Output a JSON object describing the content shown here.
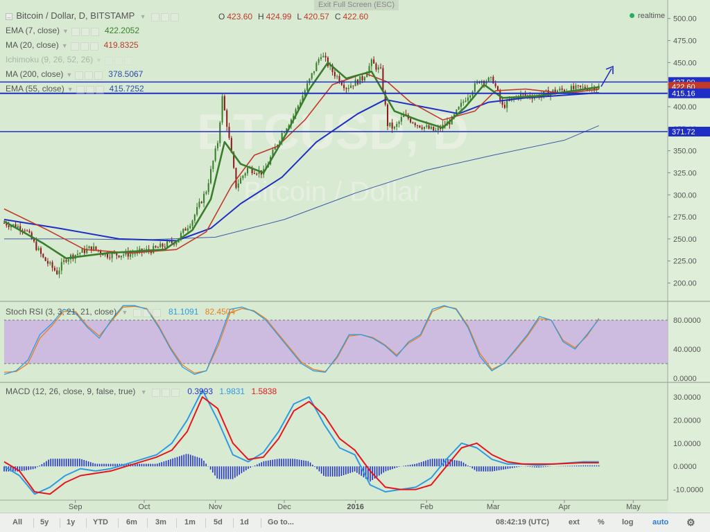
{
  "symbol_title": "Bitcoin / Dollar, D, BITSTAMP",
  "exit_fullscreen": "Exit Full Screen (ESC)",
  "realtime": "realtime",
  "ohlc": [
    {
      "k": "O",
      "v": "423.60"
    },
    {
      "k": "H",
      "v": "424.99"
    },
    {
      "k": "L",
      "v": "420.57"
    },
    {
      "k": "C",
      "v": "422.60"
    }
  ],
  "legend": [
    {
      "name": "EMA (7, close)",
      "value": "422.2052",
      "color": "#3a7d2c",
      "faded": false
    },
    {
      "name": "MA (20, close)",
      "value": "419.8325",
      "color": "#c0392b",
      "faded": false
    },
    {
      "name": "Ichimoku (9, 26, 52, 26)",
      "value": "",
      "color": "#888888",
      "faded": true
    },
    {
      "name": "MA (200, close)",
      "value": "378.5067",
      "color": "#2a4aa8",
      "faded": false
    },
    {
      "name": "EMA (55, close)",
      "value": "415.7252",
      "color": "#2a4aa8",
      "faded": false
    }
  ],
  "stoch_legend": {
    "name": "Stoch RSI (3, 3, 21, 21, close)",
    "k": "81.1091",
    "d": "82.4504"
  },
  "macd_legend": {
    "name": "MACD (12, 26, close, 9, false, true)",
    "hist": "0.3993",
    "macd": "1.9831",
    "signal": "1.5838"
  },
  "colors": {
    "background": "#d9ead3",
    "up": "#3a7d2c",
    "down": "#8b1c1c",
    "ema7": "#3a7d2c",
    "ma20": "#c0392b",
    "ema55": "#1f2ec4",
    "ma200": "#3c5aa6",
    "hline": "#1f2ec4",
    "stoch_k": "#2e9be0",
    "stoch_d": "#e67e22",
    "stoch_band": "#cdbbe0",
    "macd_line": "#2e9be0",
    "signal_line": "#e8141b",
    "hist": "#2233cc"
  },
  "bottom_bar": {
    "ranges": [
      "All",
      "5y",
      "1y",
      "YTD",
      "6m",
      "3m",
      "1m",
      "5d",
      "1d"
    ],
    "goto": "Go to...",
    "time": "08:42:19 (UTC)",
    "ext": "ext",
    "pct": "%",
    "log": "log",
    "auto": "auto",
    "settings_icon": "gear-icon"
  },
  "chart_data": [
    {
      "type": "candlestick",
      "title": "Bitcoin / Dollar, D, BITSTAMP",
      "x_tick_labels": [
        "Sep",
        "Oct",
        "Nov",
        "Dec",
        "2016",
        "Feb",
        "Mar",
        "Apr",
        "May"
      ],
      "x_tick_dates": [
        "2015-09-01",
        "2015-10-01",
        "2015-11-01",
        "2015-12-01",
        "2016-01-01",
        "2016-02-01",
        "2016-03-01",
        "2016-04-01",
        "2016-05-01"
      ],
      "y_ticks": [
        200,
        225,
        250,
        275,
        300,
        325,
        350,
        375,
        400,
        425,
        450,
        475,
        500
      ],
      "y_tick_labels": [
        "200.00",
        "225.00",
        "250.00",
        "275.00",
        "300.00",
        "325.00",
        "350.00",
        "375.00",
        "400.00",
        "425.00",
        "450.00",
        "475.00",
        "500.00"
      ],
      "ylim": [
        180,
        510
      ],
      "horizontal_lines": [
        427.99,
        415.16,
        371.72
      ],
      "price_labels": [
        {
          "value": 427.99,
          "label": "427.99",
          "color": "#1f2ec4"
        },
        {
          "value": 422.6,
          "label": "422.60",
          "color": "#c0392b"
        },
        {
          "value": 415.16,
          "label": "415.16",
          "color": "#1f2ec4"
        },
        {
          "value": 371.72,
          "label": "371.72",
          "color": "#1f2ec4"
        }
      ],
      "price_path": [
        [
          "2015-08-01",
          268
        ],
        [
          "2015-08-10",
          262
        ],
        [
          "2015-08-18",
          228
        ],
        [
          "2015-08-24",
          212
        ],
        [
          "2015-08-28",
          228
        ],
        [
          "2015-09-08",
          240
        ],
        [
          "2015-09-15",
          232
        ],
        [
          "2015-09-25",
          233
        ],
        [
          "2015-10-05",
          238
        ],
        [
          "2015-10-15",
          248
        ],
        [
          "2015-10-22",
          272
        ],
        [
          "2015-10-28",
          305
        ],
        [
          "2015-11-02",
          360
        ],
        [
          "2015-11-04",
          410
        ],
        [
          "2015-11-06",
          380
        ],
        [
          "2015-11-10",
          310
        ],
        [
          "2015-11-15",
          330
        ],
        [
          "2015-11-22",
          325
        ],
        [
          "2015-11-30",
          370
        ],
        [
          "2015-12-05",
          390
        ],
        [
          "2015-12-12",
          430
        ],
        [
          "2015-12-17",
          460
        ],
        [
          "2015-12-22",
          440
        ],
        [
          "2015-12-28",
          422
        ],
        [
          "2016-01-04",
          432
        ],
        [
          "2016-01-08",
          450
        ],
        [
          "2016-01-12",
          440
        ],
        [
          "2016-01-15",
          380
        ],
        [
          "2016-01-18",
          375
        ],
        [
          "2016-01-22",
          390
        ],
        [
          "2016-01-28",
          380
        ],
        [
          "2016-02-05",
          372
        ],
        [
          "2016-02-12",
          385
        ],
        [
          "2016-02-18",
          410
        ],
        [
          "2016-02-24",
          430
        ],
        [
          "2016-03-01",
          430
        ],
        [
          "2016-03-05",
          400
        ],
        [
          "2016-03-12",
          413
        ],
        [
          "2016-03-20",
          412
        ],
        [
          "2016-03-28",
          418
        ],
        [
          "2016-04-05",
          420
        ],
        [
          "2016-04-12",
          422
        ],
        [
          "2016-04-16",
          422.6
        ]
      ],
      "ema7_path": [
        [
          "2015-08-01",
          270
        ],
        [
          "2015-08-18",
          245
        ],
        [
          "2015-08-28",
          228
        ],
        [
          "2015-09-15",
          234
        ],
        [
          "2015-10-10",
          238
        ],
        [
          "2015-10-22",
          260
        ],
        [
          "2015-10-30",
          295
        ],
        [
          "2015-11-05",
          360
        ],
        [
          "2015-11-12",
          335
        ],
        [
          "2015-11-22",
          325
        ],
        [
          "2015-12-02",
          370
        ],
        [
          "2015-12-12",
          420
        ],
        [
          "2015-12-20",
          450
        ],
        [
          "2015-12-28",
          432
        ],
        [
          "2016-01-08",
          440
        ],
        [
          "2016-01-18",
          395
        ],
        [
          "2016-01-28",
          385
        ],
        [
          "2016-02-08",
          376
        ],
        [
          "2016-02-18",
          400
        ],
        [
          "2016-02-26",
          425
        ],
        [
          "2016-03-05",
          410
        ],
        [
          "2016-03-20",
          412
        ],
        [
          "2016-04-05",
          418
        ],
        [
          "2016-04-16",
          422.2
        ]
      ],
      "ma20_path": [
        [
          "2015-08-01",
          284
        ],
        [
          "2015-08-20",
          260
        ],
        [
          "2015-09-05",
          238
        ],
        [
          "2015-09-25",
          234
        ],
        [
          "2015-10-15",
          238
        ],
        [
          "2015-10-28",
          258
        ],
        [
          "2015-11-08",
          310
        ],
        [
          "2015-11-18",
          345
        ],
        [
          "2015-11-28",
          355
        ],
        [
          "2015-12-10",
          385
        ],
        [
          "2015-12-22",
          425
        ],
        [
          "2016-01-05",
          438
        ],
        [
          "2016-01-15",
          428
        ],
        [
          "2016-01-25",
          405
        ],
        [
          "2016-02-08",
          385
        ],
        [
          "2016-02-22",
          395
        ],
        [
          "2016-03-02",
          418
        ],
        [
          "2016-03-15",
          420
        ],
        [
          "2016-04-01",
          415
        ],
        [
          "2016-04-16",
          419.8
        ]
      ],
      "ema55_path": [
        [
          "2015-08-01",
          272
        ],
        [
          "2015-08-25",
          262
        ],
        [
          "2015-09-20",
          250
        ],
        [
          "2015-10-15",
          248
        ],
        [
          "2015-10-30",
          262
        ],
        [
          "2015-11-12",
          290
        ],
        [
          "2015-11-30",
          320
        ],
        [
          "2015-12-15",
          360
        ],
        [
          "2016-01-02",
          392
        ],
        [
          "2016-01-14",
          408
        ],
        [
          "2016-01-30",
          400
        ],
        [
          "2016-02-15",
          392
        ],
        [
          "2016-02-28",
          405
        ],
        [
          "2016-03-15",
          410
        ],
        [
          "2016-04-16",
          415.7
        ]
      ],
      "ma200_path": [
        [
          "2015-08-01",
          250
        ],
        [
          "2015-09-01",
          250
        ],
        [
          "2015-10-01",
          249
        ],
        [
          "2015-11-01",
          252
        ],
        [
          "2015-12-01",
          272
        ],
        [
          "2016-01-01",
          302
        ],
        [
          "2016-02-01",
          328
        ],
        [
          "2016-03-01",
          345
        ],
        [
          "2016-04-01",
          362
        ],
        [
          "2016-04-16",
          378.5
        ]
      ]
    },
    {
      "type": "line",
      "title": "Stoch RSI (3, 3, 21, 21, close)",
      "y_ticks": [
        0,
        40,
        80
      ],
      "y_tick_labels": [
        "0.0000",
        "40.0000",
        "80.0000"
      ],
      "ylim": [
        -5,
        105
      ],
      "band": [
        20,
        80
      ],
      "series": [
        {
          "name": "K",
          "values": [
            5,
            10,
            25,
            60,
            75,
            95,
            90,
            70,
            55,
            80,
            100,
            100,
            95,
            70,
            40,
            15,
            5,
            10,
            50,
            95,
            98,
            92,
            80,
            60,
            40,
            20,
            10,
            8,
            30,
            60,
            60,
            55,
            45,
            30,
            50,
            60,
            95,
            100,
            95,
            70,
            30,
            10,
            20,
            40,
            60,
            85,
            80,
            50,
            40,
            60,
            81.1
          ]
        },
        {
          "name": "D",
          "values": [
            8,
            9,
            20,
            55,
            72,
            92,
            92,
            72,
            58,
            78,
            98,
            99,
            96,
            72,
            42,
            18,
            7,
            10,
            45,
            90,
            96,
            93,
            82,
            62,
            42,
            22,
            12,
            9,
            28,
            58,
            60,
            56,
            46,
            32,
            48,
            58,
            92,
            99,
            96,
            72,
            34,
            12,
            20,
            38,
            58,
            82,
            80,
            52,
            42,
            58,
            82.5
          ]
        }
      ]
    },
    {
      "type": "line",
      "title": "MACD (12, 26, close, 9, false, true)",
      "y_ticks": [
        -10,
        0,
        10,
        20,
        30
      ],
      "y_tick_labels": [
        "-10.0000",
        "0.0000",
        "10.0000",
        "20.0000",
        "30.0000"
      ],
      "ylim": [
        -14,
        36
      ],
      "series": [
        {
          "name": "MACD",
          "values": [
            0,
            -4,
            -12,
            -9,
            -4,
            -1,
            -2,
            -1,
            1,
            3,
            5,
            10,
            20,
            33,
            20,
            5,
            2,
            6,
            15,
            27,
            30,
            18,
            8,
            5,
            -8,
            -11,
            -10,
            -9,
            -5,
            3,
            10,
            8,
            3,
            1,
            1,
            0.5,
            1,
            1.5,
            2,
            1.98
          ]
        },
        {
          "name": "Signal",
          "values": [
            2,
            -2,
            -11,
            -12,
            -7,
            -4,
            -3,
            -2,
            0,
            2,
            4,
            7,
            15,
            30,
            25,
            10,
            3,
            4,
            12,
            24,
            28,
            22,
            12,
            7,
            -2,
            -9,
            -10,
            -10,
            -8,
            0,
            8,
            10,
            5,
            2,
            1,
            1,
            1,
            1.3,
            1.6,
            1.58
          ]
        }
      ],
      "histogram_legend_value": 0.3993
    }
  ]
}
